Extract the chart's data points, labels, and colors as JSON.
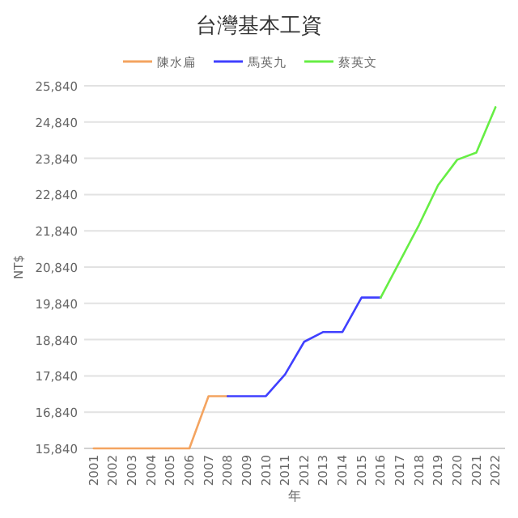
{
  "chart_data": {
    "type": "line",
    "title": "台灣基本工資",
    "xlabel": "年",
    "ylabel": "NT$",
    "categories": [
      "2001",
      "2002",
      "2003",
      "2004",
      "2005",
      "2006",
      "2007",
      "2008",
      "2009",
      "2010",
      "2011",
      "2012",
      "2013",
      "2014",
      "2015",
      "2016",
      "2017",
      "2018",
      "2019",
      "2020",
      "2021",
      "2022"
    ],
    "series": [
      {
        "name": "陳水扁",
        "color": "#f4a460",
        "values": [
          15840,
          15840,
          15840,
          15840,
          15840,
          15840,
          17280,
          17280,
          null,
          null,
          null,
          null,
          null,
          null,
          null,
          null,
          null,
          null,
          null,
          null,
          null,
          null
        ]
      },
      {
        "name": "馬英九",
        "color": "#4040ff",
        "values": [
          null,
          null,
          null,
          null,
          null,
          null,
          null,
          17280,
          17280,
          17280,
          17880,
          18780,
          19050,
          19050,
          20000,
          20000,
          null,
          null,
          null,
          null,
          null,
          null
        ]
      },
      {
        "name": "蔡英文",
        "color": "#66ee44",
        "values": [
          null,
          null,
          null,
          null,
          null,
          null,
          null,
          null,
          null,
          null,
          null,
          null,
          null,
          null,
          null,
          20000,
          21000,
          22000,
          23100,
          23800,
          24000,
          25250
        ]
      }
    ],
    "ylim": [
      15840,
      25840
    ],
    "yticks": [
      {
        "value": 15840,
        "label": "15,840"
      },
      {
        "value": 16840,
        "label": "16,840"
      },
      {
        "value": 17840,
        "label": "17,840"
      },
      {
        "value": 18840,
        "label": "18,840"
      },
      {
        "value": 19840,
        "label": "19,840"
      },
      {
        "value": 20840,
        "label": "20,840"
      },
      {
        "value": 21840,
        "label": "21,840"
      },
      {
        "value": 22840,
        "label": "22,840"
      },
      {
        "value": 23840,
        "label": "23,840"
      },
      {
        "value": 24840,
        "label": "24,840"
      },
      {
        "value": 25840,
        "label": "25,840"
      }
    ],
    "grid": "y",
    "legend": "top"
  }
}
